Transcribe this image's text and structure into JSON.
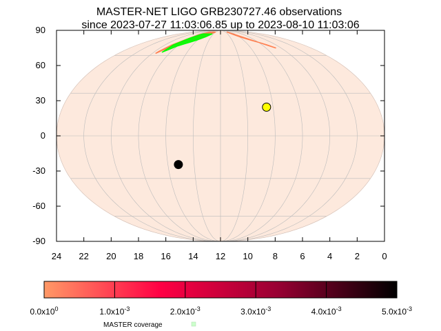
{
  "chart_data": {
    "type": "scatter",
    "projection": "mollweide",
    "title_line1": "MASTER-NET LIGO GRB230727.46 observations",
    "title_line2": "since 2023-07-27 11:03:06.85 up to 2023-08-10 11:03:06",
    "x_axis": {
      "reversed": true,
      "range": [
        24,
        0
      ],
      "ticks": [
        "24",
        "22",
        "20",
        "18",
        "16",
        "14",
        "12",
        "10",
        "8",
        "6",
        "4",
        "2",
        "0"
      ]
    },
    "y_axis": {
      "range": [
        -90,
        90
      ],
      "ticks": [
        "90",
        "60",
        "30",
        "0",
        "-30",
        "-60",
        "-90"
      ]
    },
    "grid": true,
    "sky_fill_color": "#fde9dd",
    "markers": [
      {
        "name": "sun",
        "ra_h": 8.5,
        "dec": 20,
        "color": "#ffff00"
      },
      {
        "name": "moon",
        "ra_h": 15.2,
        "dec": -20,
        "color": "#000000"
      }
    ],
    "coverage_regions": [
      {
        "color": "#ff7f50",
        "ra_h": [
          19.6,
          19.2,
          18.8,
          18.3,
          17.8,
          17.2,
          16.6,
          16.0,
          15.6,
          15.0,
          14.5,
          14.1,
          16.5,
          17.5,
          18.2,
          19.0,
          19.5
        ],
        "dec": [
          62,
          65,
          68,
          70,
          72,
          74,
          76,
          78,
          80,
          82,
          84,
          86,
          86,
          82,
          76,
          70,
          64
        ]
      },
      {
        "color": "#ff7f50",
        "ra_h": [
          4.7,
          4.9,
          5.3,
          5.8,
          6.4,
          7.0,
          7.6,
          8.1,
          8.6,
          9.0,
          9.3
        ],
        "dec": [
          67,
          68,
          70,
          72,
          74,
          76,
          78,
          80,
          82,
          84,
          86
        ]
      },
      {
        "color": "#00ff00",
        "ra_h": [
          19.0,
          18.5,
          18.0,
          17.4,
          16.8,
          16.2,
          15.7,
          15.2,
          14.8,
          14.4,
          17.0,
          18.0,
          18.8
        ],
        "dec": [
          63,
          66,
          69,
          71,
          73,
          75,
          77,
          79,
          81,
          83,
          83,
          77,
          70
        ]
      }
    ],
    "colorbar": {
      "range": [
        0,
        0.005
      ],
      "stops": [
        "#ff9966",
        "#ff0044",
        "#990033",
        "#000000"
      ],
      "ticks": [
        {
          "value": 0.0,
          "mantissa": "0.0x10",
          "exp": "0"
        },
        {
          "value": 0.001,
          "mantissa": "1.0x10",
          "exp": "-3"
        },
        {
          "value": 0.002,
          "mantissa": "2.0x10",
          "exp": "-3"
        },
        {
          "value": 0.003,
          "mantissa": "3.0x10",
          "exp": "-3"
        },
        {
          "value": 0.004,
          "mantissa": "4.0x10",
          "exp": "-3"
        },
        {
          "value": 0.005,
          "mantissa": "5.0x10",
          "exp": "-3"
        }
      ]
    },
    "legend": {
      "label": "MASTER coverage",
      "color": "#ccffcc"
    }
  }
}
